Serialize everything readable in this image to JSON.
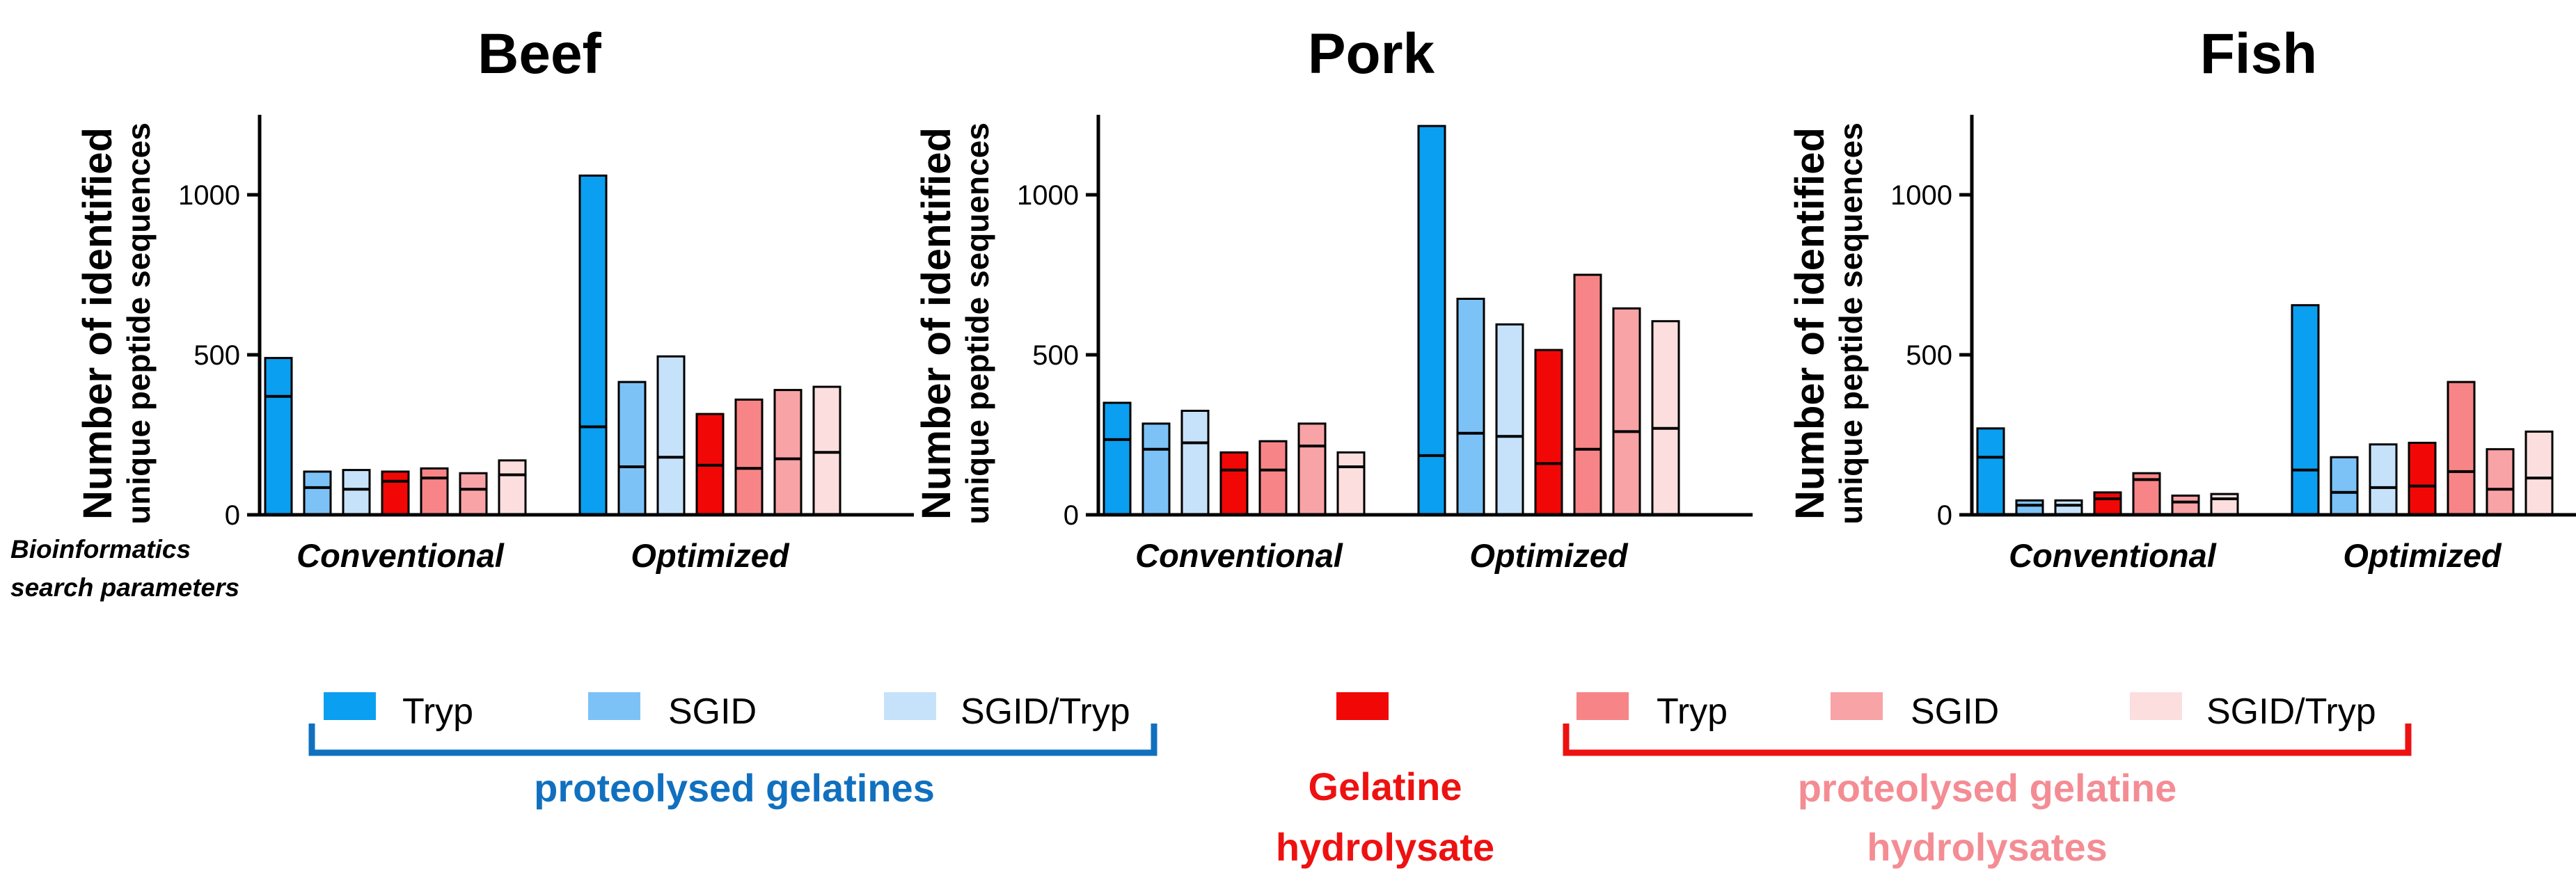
{
  "colors": {
    "tryp": "#0a9ff0",
    "sgid": "#7dc2f7",
    "sgid_tryp": "#c6e2fa",
    "hydrolysate": "#f20707",
    "h_tryp": "#f78587",
    "h_sgid": "#f8a3a6",
    "h_sgid_tryp": "#fcdede",
    "blue_text": "#1070bf",
    "red_text": "#ee1111",
    "pink_text": "#f48c94"
  },
  "chart_data": [
    {
      "type": "bar",
      "title": "Beef",
      "ylabel": "Number of identified",
      "ylabel2": "unique peptide sequences",
      "ylim": [
        0,
        1250
      ],
      "yticks": [
        "0",
        "500",
        "1000"
      ],
      "yticks_values": [
        0,
        500,
        1000
      ],
      "groups": [
        "Conventional",
        "Optimized"
      ],
      "series": [
        {
          "name": "Tryp",
          "values": [
            490,
            1060
          ],
          "inner": [
            370,
            275
          ]
        },
        {
          "name": "SGID",
          "values": [
            135,
            415
          ],
          "inner": [
            85,
            150
          ]
        },
        {
          "name": "SGID/Tryp",
          "values": [
            140,
            495
          ],
          "inner": [
            80,
            180
          ]
        },
        {
          "name": "Gelatine hydrolysate",
          "values": [
            135,
            315
          ],
          "inner": [
            105,
            155
          ]
        },
        {
          "name": "Tryp",
          "values": [
            145,
            360
          ],
          "inner": [
            115,
            145
          ]
        },
        {
          "name": "SGID",
          "values": [
            130,
            390
          ],
          "inner": [
            80,
            175
          ]
        },
        {
          "name": "SGID/Tryp",
          "values": [
            170,
            400
          ],
          "inner": [
            125,
            195
          ]
        }
      ]
    },
    {
      "type": "bar",
      "title": "Pork",
      "ylabel": "Number of identified",
      "ylabel2": "unique peptide sequences",
      "ylim": [
        0,
        1250
      ],
      "yticks": [
        "0",
        "500",
        "1000"
      ],
      "yticks_values": [
        0,
        500,
        1000
      ],
      "groups": [
        "Conventional",
        "Optimized"
      ],
      "series": [
        {
          "name": "Tryp",
          "values": [
            350,
            1215
          ],
          "inner": [
            235,
            185
          ]
        },
        {
          "name": "SGID",
          "values": [
            285,
            675
          ],
          "inner": [
            205,
            255
          ]
        },
        {
          "name": "SGID/Tryp",
          "values": [
            325,
            595
          ],
          "inner": [
            225,
            245
          ]
        },
        {
          "name": "Gelatine hydrolysate",
          "values": [
            195,
            515
          ],
          "inner": [
            140,
            160
          ]
        },
        {
          "name": "Tryp",
          "values": [
            230,
            750
          ],
          "inner": [
            140,
            205
          ]
        },
        {
          "name": "SGID",
          "values": [
            285,
            645
          ],
          "inner": [
            215,
            260
          ]
        },
        {
          "name": "SGID/Tryp",
          "values": [
            195,
            605
          ],
          "inner": [
            150,
            270
          ]
        }
      ]
    },
    {
      "type": "bar",
      "title": "Fish",
      "ylabel": "Number of identified",
      "ylabel2": "unique peptide sequences",
      "ylim": [
        0,
        1250
      ],
      "yticks": [
        "0",
        "500",
        "1000"
      ],
      "yticks_values": [
        0,
        500,
        1000
      ],
      "groups": [
        "Conventional",
        "Optimized"
      ],
      "series": [
        {
          "name": "Tryp",
          "values": [
            270,
            655
          ],
          "inner": [
            180,
            140
          ]
        },
        {
          "name": "SGID",
          "values": [
            45,
            180
          ],
          "inner": [
            30,
            70
          ]
        },
        {
          "name": "SGID/Tryp",
          "values": [
            45,
            220
          ],
          "inner": [
            30,
            85
          ]
        },
        {
          "name": "Gelatine hydrolysate",
          "values": [
            70,
            225
          ],
          "inner": [
            50,
            90
          ]
        },
        {
          "name": "Tryp",
          "values": [
            130,
            415
          ],
          "inner": [
            110,
            135
          ]
        },
        {
          "name": "SGID",
          "values": [
            60,
            205
          ],
          "inner": [
            40,
            80
          ]
        },
        {
          "name": "SGID/Tryp",
          "values": [
            65,
            260
          ],
          "inner": [
            50,
            115
          ]
        }
      ]
    }
  ],
  "side_label": {
    "line1": "Bioinformatics",
    "line2": "search parameters"
  },
  "legend": {
    "blue_items": [
      "Tryp",
      "SGID",
      "SGID/Tryp"
    ],
    "blue_caption": "proteolysed gelatines",
    "hydro_caption_line1": "Gelatine",
    "hydro_caption_line2": "hydrolysate",
    "red_items": [
      "Tryp",
      "SGID",
      "SGID/Tryp"
    ],
    "red_caption_line1": "proteolysed gelatine",
    "red_caption_line2": "hydrolysates"
  }
}
